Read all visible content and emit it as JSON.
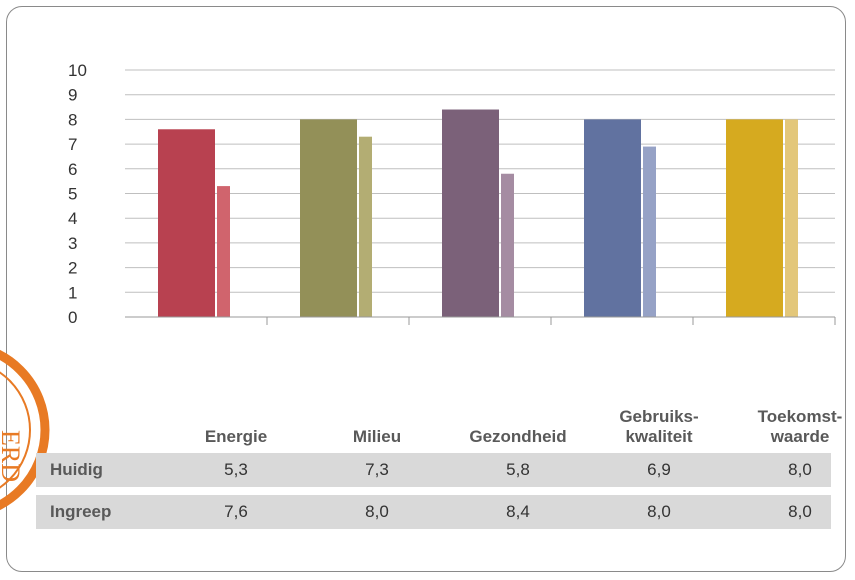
{
  "chart_data": {
    "type": "bar",
    "categories": [
      "Energie",
      "Milieu",
      "Gezondheid",
      "Gebruiks-\nkwaliteit",
      "Toekomst-\nwaarde"
    ],
    "series": [
      {
        "values": [
          7.6,
          8.0,
          8.4,
          8.0,
          8.0
        ]
      },
      {
        "values": [
          5.3,
          7.3,
          5.8,
          6.9,
          8.0
        ]
      }
    ],
    "ylim": [
      0,
      10
    ],
    "yticks": [
      "0",
      "1",
      "2",
      "3",
      "4",
      "5",
      "6",
      "7",
      "8",
      "9",
      "10"
    ],
    "grid": true,
    "colors": {
      "series0": [
        "#b84150",
        "#939058",
        "#7b6179",
        "#6172a0",
        "#d6aa1f"
      ],
      "series1": [
        "#d0646d",
        "#b3ad73",
        "#a58ca2",
        "#96a2c6",
        "#e3c77a"
      ],
      "grid": "#bfbfbf",
      "axis": "#999999"
    }
  },
  "table": {
    "rows": [
      {
        "label": "Huidig",
        "values": [
          "5,3",
          "7,3",
          "5,8",
          "6,9",
          "8,0"
        ]
      },
      {
        "label": "Ingreep",
        "values": [
          "7,6",
          "8,0",
          "8,4",
          "8,0",
          "8,0"
        ]
      }
    ]
  },
  "seal": {
    "text": "ERD",
    "color": "#e87a24"
  }
}
